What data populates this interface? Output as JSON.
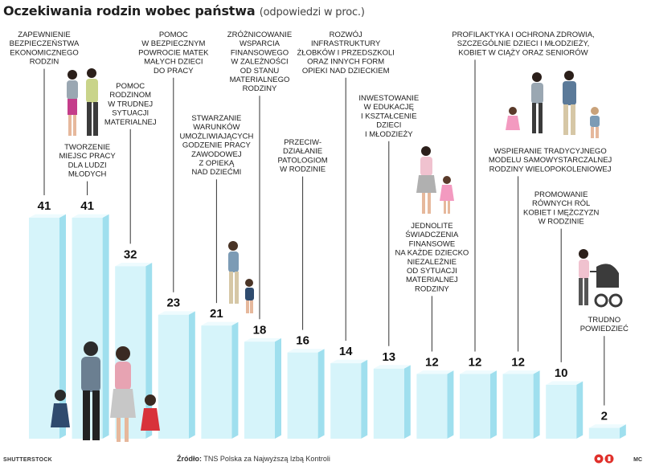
{
  "header": {
    "title": "Oczekiwania rodzin wobec państwa",
    "subtitle": "(odpowiedzi w proc.)"
  },
  "footer": {
    "photo_credit": "SHUTTERSTOCK",
    "source_label": "Źródło:",
    "source_text": "TNS Polska za Najwyższą Izbą Kontroli",
    "author": "MC"
  },
  "colors": {
    "bar_front": "#d6f4fa",
    "bar_side": "#9fdfee",
    "bar_top": "#eefbfe",
    "leader": "#333333",
    "logo": "#e0302b"
  },
  "chart_data": {
    "type": "bar",
    "title": "Oczekiwania rodzin wobec państwa",
    "subtitle": "(odpowiedzi w proc.)",
    "ylim": [
      0,
      41
    ],
    "categories": [
      "ZAPEWNIENIE BEZPIECZEŃSTWA EKONOMICZNEGO RODZIN",
      "TWORZENIE MIEJSC PRACY DLA LUDZI MŁODYCH",
      "POMOC RODZINOM W TRUDNEJ SYTUACJI MATERIALNEJ",
      "POMOC W BEZPIECZNYM POWROCIE MATEK MAŁYCH DZIECI DO PRACY",
      "STWARZANIE WARUNKÓW UMOŻLIWIAJĄCYCH GODZENIE PRACY ZAWODOWEJ Z OPIEKĄ NAD DZIEĆMI",
      "ZRÓŻNICOWANIE WSPARCIA FINANSOWEGO W ZALEŻNOŚCI OD STANU MATERIALNEGO RODZINY",
      "PRZECIW-DZIAŁANIE PATOLOGIOM W RODZINIE",
      "ROZWÓJ INFRASTRUKTURY ŻŁOBKÓW I PRZEDSZKOLI ORAZ INNYCH FORM OPIEKI NAD DZIECKIEM",
      "INWESTOWANIE W EDUKACJĘ I KSZTAŁCENIE DZIECI I MŁODZIEŻY",
      "JEDNOLITE ŚWIADCZENIA FINANSOWE NA KAŻDE DZIECKO NIEZALEŻNIE OD SYTUACJI MATERIALNEJ RODZINY",
      "PROFILAKTYKA I OCHRONA ZDROWIA, SZCZEGÓLNIE DZIECI I MŁODZIEŻY, KOBIET W CIĄŻY ORAZ SENIORÓW",
      "WSPIERANIE TRADYCYJNEGO MODELU SAMOWYSTARCZALNEJ RODZINY WIELOPOKOLENIOWEJ",
      "PROMOWANIE RÓWNYCH RÓL KOBIET I MĘŻCZYZN W RODZINIE",
      "TRUDNO POWIEDZIEĆ"
    ],
    "values": [
      41,
      41,
      32,
      23,
      21,
      18,
      16,
      14,
      13,
      12,
      12,
      12,
      10,
      2
    ],
    "label_lines": [
      [
        "ZAPEWNIENIE",
        "BEZPIECZEŃSTWA",
        "EKONOMICZNEGO",
        "RODZIN"
      ],
      [
        "TWORZENIE",
        "MIEJSC PRACY",
        "DLA LUDZI",
        "MŁODYCH"
      ],
      [
        "POMOC",
        "RODZINOM",
        "W TRUDNEJ",
        "SYTUACJI",
        "MATERIALNEJ"
      ],
      [
        "POMOC",
        "W BEZPIECZNYM",
        "POWROCIE MATEK",
        "MAŁYCH DZIECI",
        "DO PRACY"
      ],
      [
        "STWARZANIE",
        "WARUNKÓW",
        "UMOŻLIWIAJĄCYCH",
        "GODZENIE PRACY",
        "ZAWODOWEJ",
        "Z OPIEKĄ",
        "NAD DZIEĆMI"
      ],
      [
        "ZRÓŻNICOWANIE",
        "WSPARCIA",
        "FINANSOWEGO",
        "W ZALEŻNOŚCI",
        "OD STANU",
        "MATERIALNEGO",
        "RODZINY"
      ],
      [
        "PRZECIW-",
        "DZIAŁANIE",
        "PATOLOGIOM",
        "W RODZINIE"
      ],
      [
        "ROZWÓJ",
        "INFRASTRUKTURY",
        "ŻŁOBKÓW I PRZEDSZKOLI",
        "ORAZ INNYCH FORM",
        "OPIEKI NAD DZIECKIEM"
      ],
      [
        "INWESTOWANIE",
        "W EDUKACJĘ",
        "I KSZTAŁCENIE",
        "DZIECI",
        "I MŁODZIEŻY"
      ],
      [
        "JEDNOLITE",
        "ŚWIADCZENIA",
        "FINANSOWE",
        "NA KAŻDE DZIECKO",
        "NIEZALEŻNIE",
        "OD SYTUACJI",
        "MATERIALNEJ",
        "RODZINY"
      ],
      [
        "PROFILAKTYKA I OCHRONA ZDROWIA,",
        "SZCZEGÓLNIE DZIECI I MŁODZIEŻY,",
        "KOBIET W CIĄŻY ORAZ SENIORÓW"
      ],
      [
        "WSPIERANIE TRADYCYJNEGO",
        "MODELU SAMOWYSTARCZALNEJ",
        "RODZINY WIELOPOKOLENIOWEJ"
      ],
      [
        "PROMOWANIE",
        "RÓWNYCH RÓL",
        "KOBIET I MĘŻCZYZN",
        "W RODZINIE"
      ],
      [
        "TRUDNO",
        "POWIEDZIEĆ"
      ]
    ],
    "grid": false,
    "legend": "none"
  }
}
